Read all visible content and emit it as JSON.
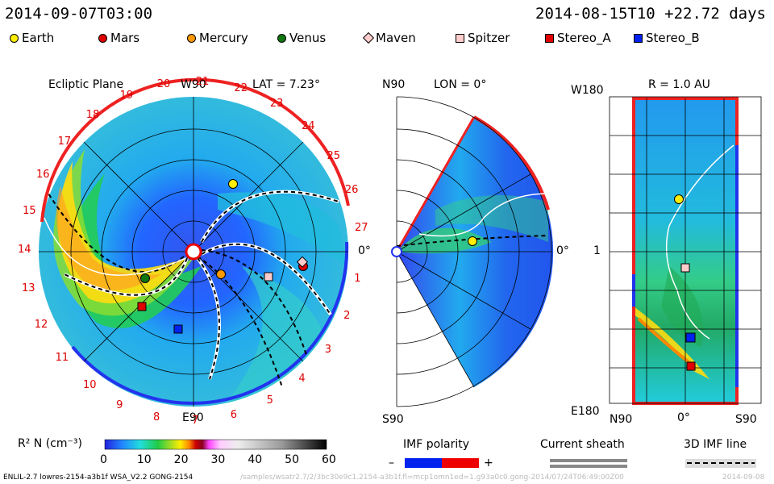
{
  "header": {
    "left_time": "2014-09-07T03:00",
    "right_time": "2014-08-15T10 +22.72 days"
  },
  "legend": [
    {
      "name": "Earth",
      "color": "#ffee00",
      "shape": "circle"
    },
    {
      "name": "Mars",
      "color": "#e00000",
      "shape": "circle"
    },
    {
      "name": "Mercury",
      "color": "#ff9900",
      "shape": "circle"
    },
    {
      "name": "Venus",
      "color": "#117711",
      "shape": "circle"
    },
    {
      "name": "Maven",
      "color": "#ffcccc",
      "shape": "diamond"
    },
    {
      "name": "Spitzer",
      "color": "#ffcccc",
      "shape": "square"
    },
    {
      "name": "Stereo_A",
      "color": "#e00000",
      "shape": "square"
    },
    {
      "name": "Stereo_B",
      "color": "#0022ee",
      "shape": "square"
    }
  ],
  "ecliptic": {
    "title": "Ecliptic Plane",
    "lat_label": "LAT = 7.23°",
    "top_label": "W90",
    "bottom_label": "E90",
    "right_label": "0°",
    "carrington": [
      "1",
      "2",
      "3",
      "4",
      "5",
      "6",
      "7",
      "8",
      "9",
      "10",
      "11",
      "12",
      "13",
      "14",
      "15",
      "16",
      "17",
      "18",
      "19",
      "20",
      "21",
      "22",
      "23",
      "24",
      "25",
      "26",
      "27"
    ]
  },
  "meridional": {
    "top_label": "N90",
    "lon_label": "LON = 0°",
    "right_label": "0°",
    "bottom_label": "S90"
  },
  "radial": {
    "title": "R = 1.0 AU",
    "top_left_label": "W180",
    "mid_left_label": "1",
    "bottom_left_label": "E180",
    "x_labels": [
      "N90",
      "0°",
      "S90"
    ]
  },
  "colorbar": {
    "label": "R² N (cm⁻³)",
    "ticks": [
      "0",
      "10",
      "20",
      "30",
      "40",
      "50",
      "60"
    ]
  },
  "imf": {
    "title": "IMF polarity",
    "minus": "–",
    "plus": "+"
  },
  "current_sheath": {
    "title": "Current sheath"
  },
  "imf_line": {
    "title": "3D IMF line"
  },
  "footer": {
    "model": "ENLIL-2.7 lowres-2154-a3b1f WSA_V2.2 GONG-2154",
    "path": "/samples/wsatr2.7/2/3bc30e9c1.2154-a3b1f.fl=mcp1omn1ed=1.g93a0c0.gong-2014/07/24T06:49:00Z00",
    "date": "2014-09-08"
  }
}
